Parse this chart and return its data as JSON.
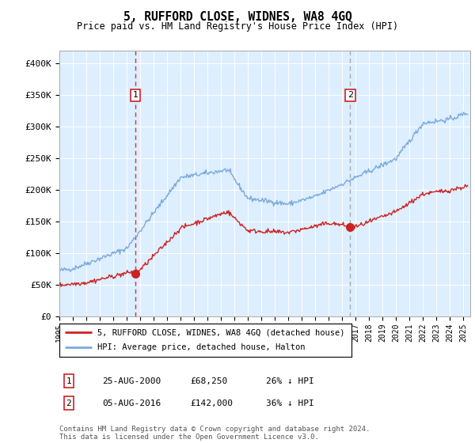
{
  "title": "5, RUFFORD CLOSE, WIDNES, WA8 4GQ",
  "subtitle": "Price paid vs. HM Land Registry's House Price Index (HPI)",
  "ylabel_ticks": [
    "£0",
    "£50K",
    "£100K",
    "£150K",
    "£200K",
    "£250K",
    "£300K",
    "£350K",
    "£400K"
  ],
  "ytick_values": [
    0,
    50000,
    100000,
    150000,
    200000,
    250000,
    300000,
    350000,
    400000
  ],
  "ylim": [
    0,
    420000
  ],
  "xlim_start": 1995.0,
  "xlim_end": 2025.5,
  "hpi_color": "#7aaadd",
  "price_color": "#cc2222",
  "marker1_vline_color": "#cc2222",
  "marker2_vline_color": "#999999",
  "bg_color": "#ddeeff",
  "marker1_year": 2000.646,
  "marker1_price": 68250,
  "marker1_label": "25-AUG-2000",
  "marker1_pct": "26% ↓ HPI",
  "marker2_year": 2016.596,
  "marker2_price": 142000,
  "marker2_label": "05-AUG-2016",
  "marker2_pct": "36% ↓ HPI",
  "legend_line1": "5, RUFFORD CLOSE, WIDNES, WA8 4GQ (detached house)",
  "legend_line2": "HPI: Average price, detached house, Halton",
  "footer": "Contains HM Land Registry data © Crown copyright and database right 2024.\nThis data is licensed under the Open Government Licence v3.0.",
  "xtick_years": [
    1995,
    1996,
    1997,
    1998,
    1999,
    2000,
    2001,
    2002,
    2003,
    2004,
    2005,
    2006,
    2007,
    2008,
    2009,
    2010,
    2011,
    2012,
    2013,
    2014,
    2015,
    2016,
    2017,
    2018,
    2019,
    2020,
    2021,
    2022,
    2023,
    2024,
    2025
  ]
}
